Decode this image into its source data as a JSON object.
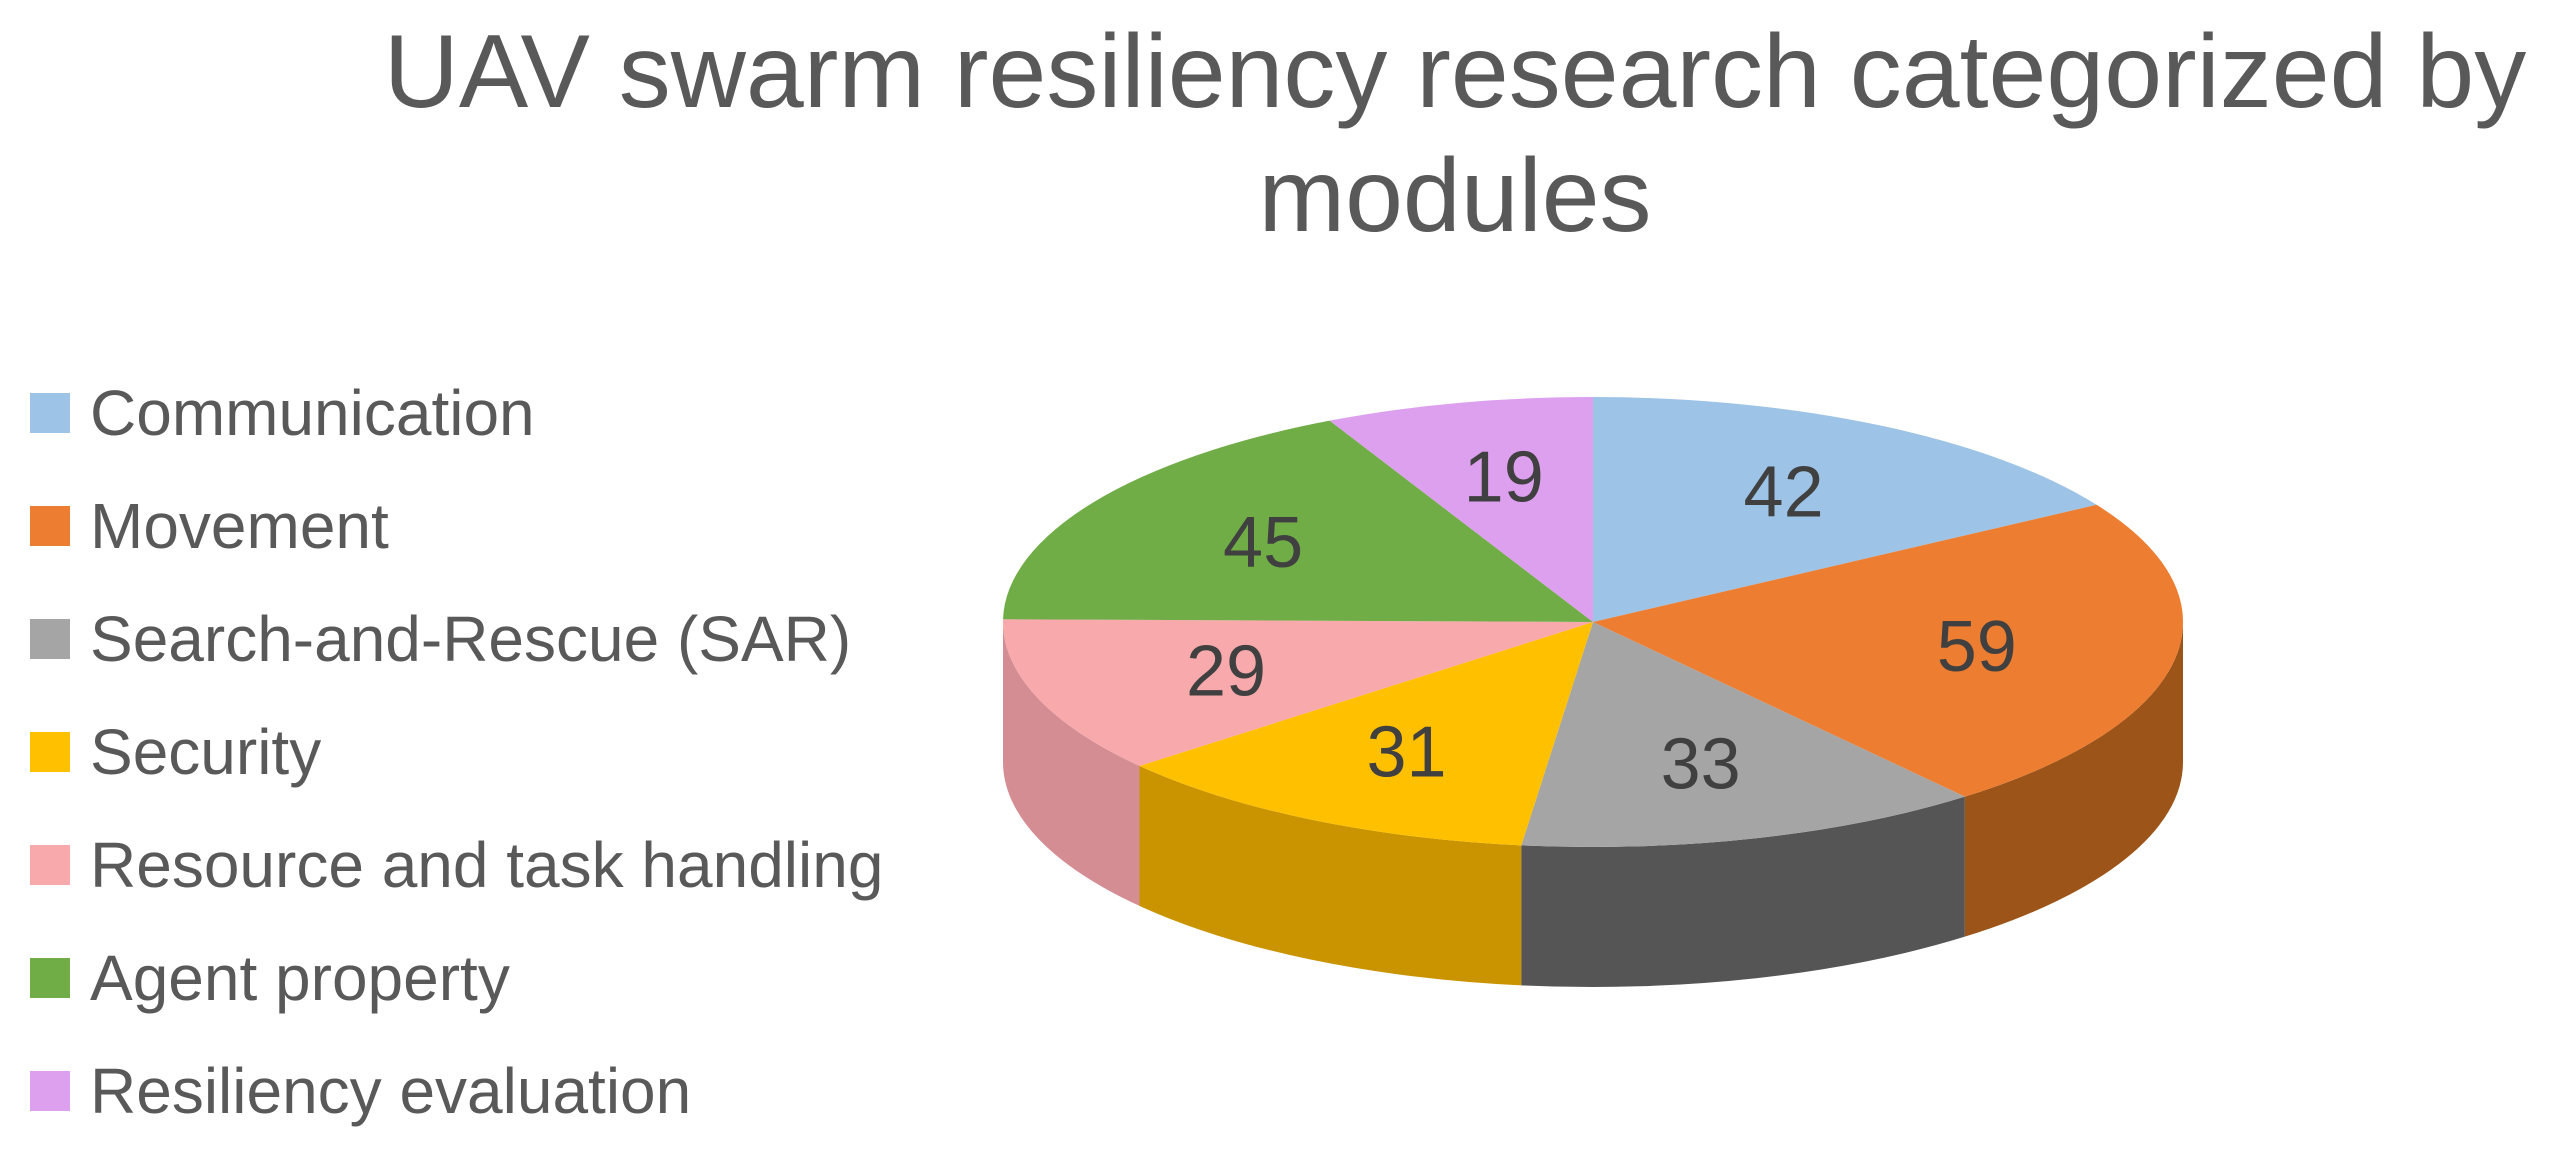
{
  "chart_data": {
    "type": "pie",
    "title": "UAV swarm resiliency research categorized by modules",
    "legend_position": "left",
    "categories": [
      "Communication",
      "Movement",
      "Search-and-Rescue (SAR)",
      "Security",
      "Resource and task handling",
      "Agent property",
      "Resiliency evaluation"
    ],
    "values": [
      42,
      59,
      33,
      31,
      29,
      45,
      19
    ],
    "colors": [
      "#9DC3E6",
      "#ED7D31",
      "#A5A5A5",
      "#FFC000",
      "#F8A9AC",
      "#70AD47",
      "#DDA0EE"
    ],
    "side_colors": [
      "#7A98B3",
      "#9C5418",
      "#555555",
      "#C99400",
      "#D48E93",
      "#4F7A32",
      "#B07FC0"
    ],
    "data_labels": true,
    "style_3d": true
  }
}
